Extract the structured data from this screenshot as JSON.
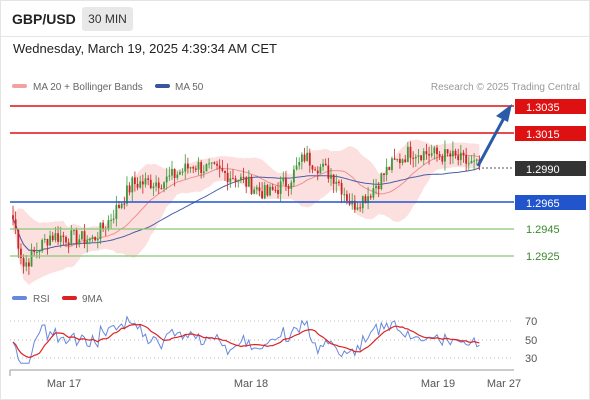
{
  "header": {
    "symbol": "GBP/USD",
    "timeframe": "30 MIN",
    "datetime": "Wednesday, March 19, 2025 4:39:34 AM CET"
  },
  "legend": {
    "ma20_label": "MA 20 + Bollinger Bands",
    "ma50_label": "MA 50",
    "credit": "Research © 2025 Trading Central"
  },
  "rsi_legend": {
    "rsi_label": "RSI",
    "ma_label": "9MA"
  },
  "colors": {
    "bull": "#3a9a3a",
    "bear": "#cc2222",
    "resistance": "#dd1111",
    "support": "#2255cc",
    "target": "#88c878",
    "current": "#333333",
    "band": "#fbd5d5",
    "ma20": "#f0a0a0",
    "ma50": "#4a5fa8",
    "arrow": "#2a5aa8",
    "rsi": "#6688dd",
    "rsi_ma": "#dd2222"
  },
  "chart_data": [
    {
      "type": "candlestick",
      "title": "",
      "x_tick_labels": [
        "Mar 17",
        "Mar 18",
        "Mar 19",
        "Mar 27"
      ],
      "ylim": [
        1.2903,
        1.3045
      ],
      "series": [
        {
          "name": "MA 20 + Bollinger Bands"
        },
        {
          "name": "MA 50"
        }
      ],
      "levels": [
        {
          "value": "1.3035",
          "kind": "resistance"
        },
        {
          "value": "1.3015",
          "kind": "resistance"
        },
        {
          "value": "1.2990",
          "kind": "current"
        },
        {
          "value": "1.2965",
          "kind": "support"
        },
        {
          "value": "1.2945",
          "kind": "target"
        },
        {
          "value": "1.2925",
          "kind": "target"
        }
      ],
      "forecast_arrow": {
        "from": 1.2989,
        "to": 1.3035
      },
      "candles_summary": {
        "open": 1.2952,
        "low_start": 1.2914,
        "peak_mar18": 1.2996,
        "low_mar18": 1.296,
        "high_mar19": 1.3005,
        "last": 1.299
      }
    },
    {
      "type": "line",
      "title": "",
      "y_ticks": [
        70,
        50,
        30
      ],
      "ylim": [
        20,
        80
      ],
      "series": [
        {
          "name": "RSI"
        },
        {
          "name": "9MA"
        }
      ]
    }
  ]
}
